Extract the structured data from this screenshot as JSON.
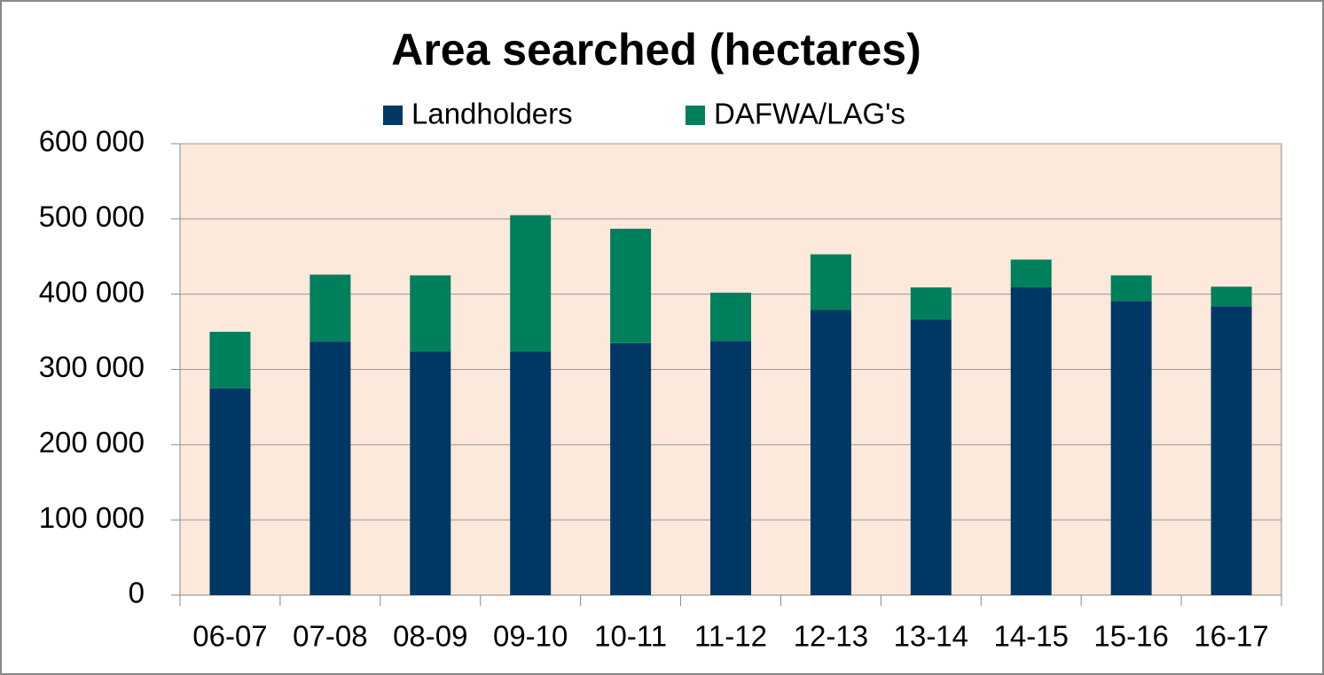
{
  "chart_data": {
    "type": "stacked-bar",
    "title": "Area searched (hectares)",
    "categories": [
      "06-07",
      "07-08",
      "08-09",
      "09-10",
      "10-11",
      "11-12",
      "12-13",
      "13-14",
      "14-15",
      "15-16",
      "16-17"
    ],
    "series": [
      {
        "name": "Landholders",
        "color": "#003865",
        "values": [
          275000,
          337000,
          324000,
          324000,
          335000,
          338000,
          379000,
          366000,
          409000,
          391000,
          384000
        ]
      },
      {
        "name": "DAFWA/LAG's",
        "color": "#007f5c",
        "values": [
          75000,
          89000,
          101000,
          181000,
          152000,
          64000,
          74000,
          43000,
          37000,
          34000,
          26000
        ]
      }
    ],
    "ylim": [
      0,
      600000
    ],
    "yticks": [
      0,
      {
        "value": 100000,
        "label": "100 000"
      },
      {
        "value": 200000,
        "label": "200 000"
      },
      {
        "value": 300000,
        "label": "300 000"
      },
      {
        "value": 400000,
        "label": "400 000"
      },
      {
        "value": 500000,
        "label": "500 000"
      },
      {
        "value": 600000,
        "label": "600 000"
      }
    ],
    "grid": true,
    "legend": "top",
    "plot_background": "#fce9db"
  }
}
